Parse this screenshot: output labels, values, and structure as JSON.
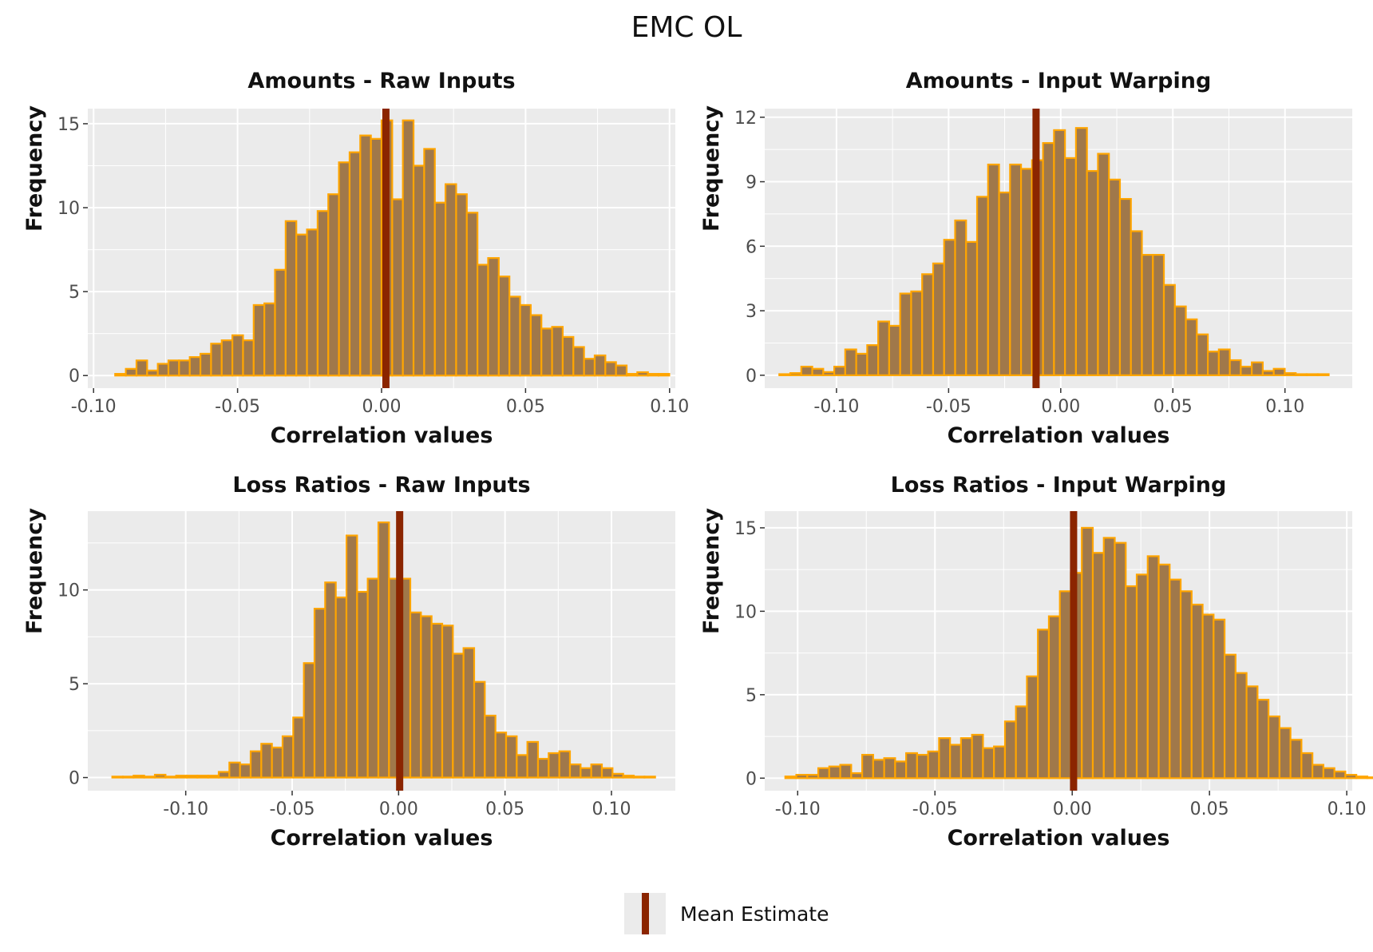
{
  "title": "EMC OL",
  "legend": {
    "label": "Mean Estimate",
    "color": "#8b2500"
  },
  "colors": {
    "panel_bg": "#ebebeb",
    "grid": "#ffffff",
    "bar_fill": "#a0784a",
    "bar_stroke": "#ffa500",
    "mean_line": "#8b2500"
  },
  "chart_data": [
    {
      "type": "bar",
      "title": "Amounts - Raw Inputs",
      "xlabel": "Correlation values",
      "ylabel": "Frequency",
      "xlim": [
        -0.102,
        0.102
      ],
      "ylim": [
        -0.75,
        15.9
      ],
      "xticks": [
        -0.1,
        -0.05,
        0.0,
        0.05,
        0.1
      ],
      "xtick_labels": [
        "-0.10",
        "-0.05",
        "0.00",
        "0.05",
        "0.10"
      ],
      "yticks": [
        0,
        5,
        10,
        15
      ],
      "ytick_labels": [
        "0",
        "5",
        "10",
        "15"
      ],
      "bin_start": -0.0925,
      "bin_width": 0.0037,
      "values": [
        0.1,
        0.4,
        0.9,
        0.3,
        0.7,
        0.9,
        0.9,
        1.1,
        1.3,
        1.9,
        2.1,
        2.4,
        2.1,
        4.2,
        4.3,
        6.3,
        9.2,
        8.4,
        8.7,
        9.8,
        10.8,
        12.7,
        13.3,
        14.3,
        14.1,
        15.2,
        10.5,
        15.2,
        12.5,
        13.5,
        10.3,
        11.4,
        10.8,
        9.7,
        6.6,
        7.0,
        5.9,
        4.7,
        4.2,
        3.6,
        2.8,
        2.9,
        2.3,
        1.7,
        1.0,
        1.2,
        0.8,
        0.6,
        0.1,
        0.2,
        0.1,
        0.1
      ],
      "mean": 0.0015
    },
    {
      "type": "bar",
      "title": "Amounts - Input Warping",
      "xlabel": "Correlation values",
      "ylabel": "Frequency",
      "xlim": [
        -0.132,
        0.13
      ],
      "ylim": [
        -0.6,
        12.4
      ],
      "xticks": [
        -0.1,
        -0.05,
        0.0,
        0.05,
        0.1
      ],
      "xtick_labels": [
        "-0.10",
        "-0.05",
        "0.00",
        "0.05",
        "0.10"
      ],
      "yticks": [
        0,
        3,
        6,
        9,
        12
      ],
      "ytick_labels": [
        "0",
        "3",
        "6",
        "9",
        "12"
      ],
      "bin_start": -0.1255,
      "bin_width": 0.0049,
      "values": [
        0.05,
        0.1,
        0.4,
        0.3,
        0.15,
        0.4,
        1.2,
        1.0,
        1.4,
        2.5,
        2.3,
        3.8,
        3.9,
        4.7,
        5.2,
        6.3,
        7.2,
        6.2,
        8.3,
        9.8,
        8.5,
        9.8,
        9.6,
        10.0,
        10.8,
        11.4,
        10.1,
        11.5,
        9.5,
        10.3,
        9.1,
        8.2,
        6.7,
        5.6,
        5.6,
        4.2,
        3.2,
        2.6,
        1.9,
        1.1,
        1.2,
        0.7,
        0.4,
        0.6,
        0.2,
        0.3,
        0.1,
        0.05,
        0.05,
        0.05
      ],
      "mean": -0.011
    },
    {
      "type": "bar",
      "title": "Loss Ratios - Raw Inputs",
      "xlabel": "Correlation values",
      "ylabel": "Frequency",
      "xlim": [
        -0.146,
        0.13
      ],
      "ylim": [
        -0.7,
        14.2
      ],
      "xticks": [
        -0.1,
        -0.05,
        0.0,
        0.05,
        0.1
      ],
      "xtick_labels": [
        "-0.10",
        "-0.05",
        "0.00",
        "0.05",
        "0.10"
      ],
      "yticks": [
        0,
        5,
        10
      ],
      "ytick_labels": [
        "0",
        "5",
        "10"
      ],
      "bin_start": -0.1345,
      "bin_width": 0.005,
      "values": [
        0.05,
        0.05,
        0.1,
        0.05,
        0.15,
        0.05,
        0.1,
        0.1,
        0.1,
        0.1,
        0.3,
        0.8,
        0.7,
        1.4,
        1.8,
        1.6,
        2.2,
        3.2,
        6.1,
        9.0,
        10.4,
        9.6,
        12.9,
        9.9,
        10.6,
        13.6,
        10.6,
        10.6,
        8.8,
        8.6,
        8.2,
        8.1,
        6.6,
        6.9,
        5.1,
        3.3,
        2.4,
        2.2,
        1.2,
        1.9,
        1.0,
        1.3,
        1.4,
        0.7,
        0.5,
        0.7,
        0.5,
        0.2,
        0.1,
        0.05,
        0.05
      ],
      "mean": 0.0005
    },
    {
      "type": "bar",
      "title": "Loss Ratios - Input Warping",
      "xlabel": "Correlation values",
      "ylabel": "Frequency",
      "xlim": [
        -0.112,
        0.102
      ],
      "ylim": [
        -0.75,
        16.0
      ],
      "xticks": [
        -0.1,
        -0.05,
        0.0,
        0.05,
        0.1
      ],
      "xtick_labels": [
        "-0.10",
        "-0.05",
        "0.00",
        "0.05",
        "0.10"
      ],
      "yticks": [
        0,
        5,
        10,
        15
      ],
      "ytick_labels": [
        "0",
        "5",
        "10",
        "15"
      ],
      "bin_start": -0.1045,
      "bin_width": 0.004,
      "values": [
        0.1,
        0.2,
        0.2,
        0.6,
        0.7,
        0.8,
        0.3,
        1.4,
        1.1,
        1.2,
        1.0,
        1.5,
        1.4,
        1.6,
        2.4,
        2.0,
        2.4,
        2.6,
        1.8,
        1.9,
        3.4,
        4.3,
        6.1,
        8.9,
        9.7,
        11.2,
        12.3,
        15.0,
        13.5,
        14.4,
        14.1,
        11.5,
        12.2,
        13.3,
        12.8,
        11.9,
        11.2,
        10.4,
        9.8,
        9.5,
        7.4,
        6.3,
        5.5,
        4.7,
        3.7,
        3.0,
        2.3,
        1.5,
        0.8,
        0.6,
        0.4,
        0.2,
        0.1,
        0.05
      ],
      "mean": 0.0005
    }
  ]
}
